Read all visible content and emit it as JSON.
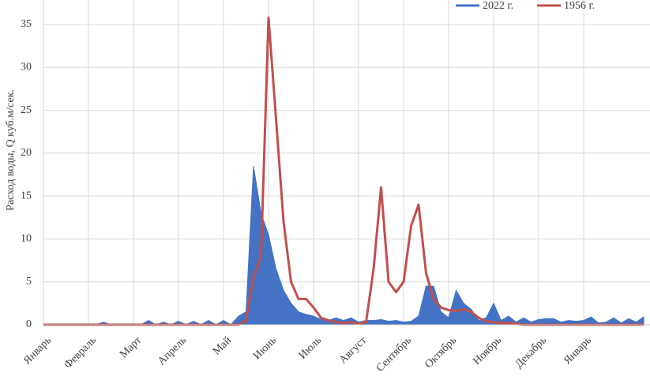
{
  "chart_data": {
    "type": "line",
    "y_label": "Расход воды, Q куб.м/сек.",
    "categories": [
      "Январь",
      null,
      null,
      null,
      null,
      null,
      "Февраль",
      null,
      null,
      null,
      null,
      null,
      "Март",
      null,
      null,
      null,
      null,
      null,
      "Апрель",
      null,
      null,
      null,
      null,
      null,
      "Май",
      null,
      null,
      null,
      null,
      null,
      "Июнь",
      null,
      null,
      null,
      null,
      null,
      "Июль",
      null,
      null,
      null,
      null,
      null,
      "Август",
      null,
      null,
      null,
      null,
      null,
      "Сентябрь",
      null,
      null,
      null,
      null,
      null,
      "Октябрь",
      null,
      null,
      null,
      null,
      null,
      "Ноябрь",
      null,
      null,
      null,
      null,
      null,
      "Декабрь",
      null,
      null,
      null,
      null,
      null,
      "Январь",
      null,
      null,
      null,
      null,
      null,
      null,
      null,
      null
    ],
    "series": [
      {
        "name": "2022 г.",
        "color": "#4472c4",
        "fill": true,
        "values": [
          0,
          0,
          0,
          0,
          0,
          0,
          0,
          0,
          0.3,
          0,
          0,
          0,
          0,
          0,
          0.5,
          0,
          0.3,
          0,
          0.4,
          0,
          0.4,
          0,
          0.5,
          0,
          0.5,
          0,
          1.0,
          1.5,
          18.5,
          13,
          10.5,
          6.5,
          4,
          2.5,
          1.5,
          1.2,
          1.0,
          0.6,
          0.5,
          0.8,
          0.5,
          0.8,
          0.3,
          0.5,
          0.5,
          0.6,
          0.4,
          0.5,
          0.3,
          0.4,
          1.0,
          4.5,
          4.5,
          1.5,
          0.8,
          4.0,
          2.5,
          1.8,
          0.5,
          0.8,
          2.5,
          0.5,
          1.0,
          0.3,
          0.8,
          0.3,
          0.6,
          0.7,
          0.7,
          0.3,
          0.5,
          0.4,
          0.5,
          0.9,
          0.2,
          0.3,
          0.8,
          0.2,
          0.7,
          0.3,
          0.9
        ]
      },
      {
        "name": "1956 г.",
        "color": "#c0504d",
        "fill": false,
        "values": [
          0,
          0,
          0,
          0,
          0,
          0,
          0,
          0,
          0,
          0,
          0,
          0,
          0,
          0,
          0,
          0,
          0,
          0,
          0,
          0,
          0,
          0,
          0,
          0,
          0,
          0,
          0,
          0.5,
          5.5,
          8,
          35.8,
          24,
          12,
          5,
          3,
          3,
          2,
          0.8,
          0.5,
          0.3,
          0.2,
          0.3,
          0.1,
          0.3,
          6.5,
          16,
          5,
          3.8,
          5,
          11.5,
          14,
          6,
          3,
          2,
          1.7,
          1.6,
          1.8,
          1.5,
          0.8,
          0.4,
          0.3,
          0.2,
          0.2,
          0.1,
          0,
          0,
          0,
          0,
          0,
          0,
          0,
          0,
          0,
          0,
          0,
          0,
          0,
          0,
          0,
          0,
          0
        ]
      }
    ],
    "ylim": [
      0,
      35
    ],
    "yticks": [
      0,
      5,
      10,
      15,
      20,
      25,
      30,
      35
    ],
    "grid": true
  }
}
